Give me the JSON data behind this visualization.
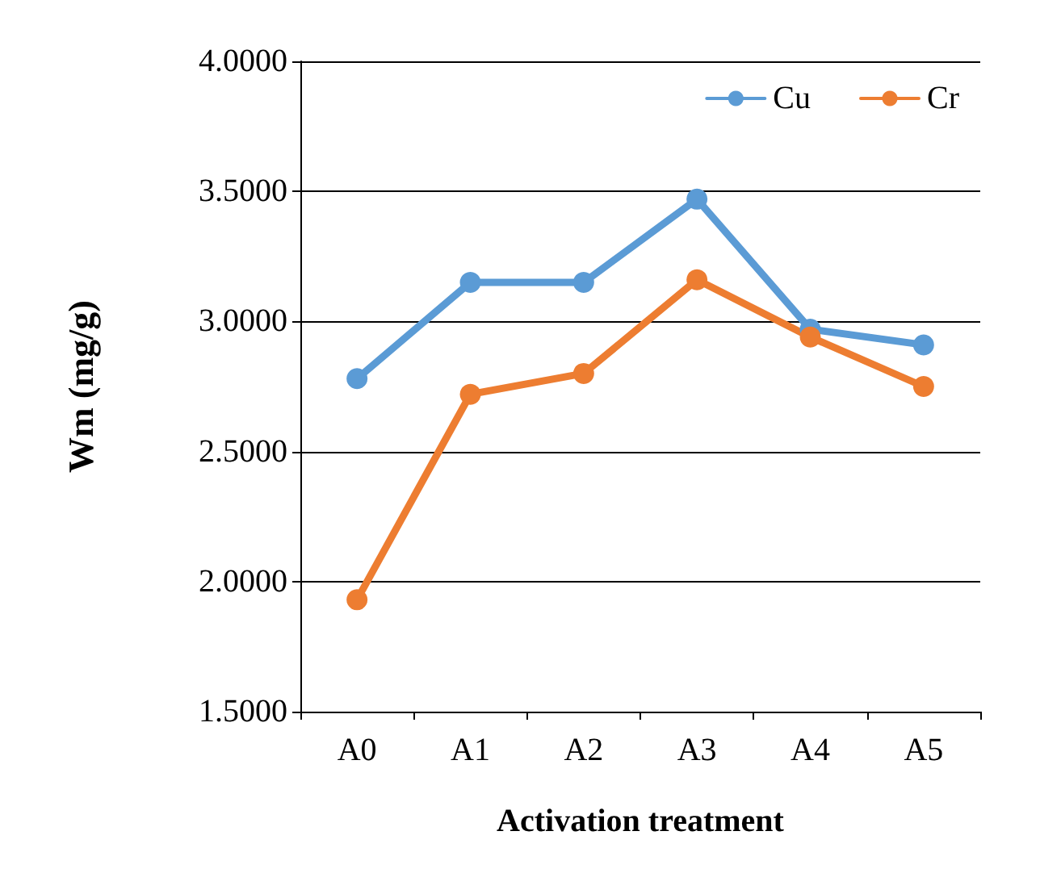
{
  "chart_data": {
    "type": "line",
    "xlabel": "Activation treatment",
    "ylabel": "Wm (mg/g)",
    "categories": [
      "A0",
      "A1",
      "A2",
      "A3",
      "A4",
      "A5"
    ],
    "series": [
      {
        "name": "Cu",
        "color": "#5b9bd5",
        "values": [
          2.78,
          3.15,
          3.15,
          3.47,
          2.97,
          2.91
        ]
      },
      {
        "name": "Cr",
        "color": "#ed7d31",
        "values": [
          1.93,
          2.72,
          2.8,
          3.16,
          2.94,
          2.75
        ]
      }
    ],
    "ylim": [
      1.5,
      4.0
    ],
    "yticks": [
      {
        "value": 1.5,
        "label": "1.5000"
      },
      {
        "value": 2.0,
        "label": "2.0000"
      },
      {
        "value": 2.5,
        "label": "2.5000"
      },
      {
        "value": 3.0,
        "label": "3.0000"
      },
      {
        "value": 3.5,
        "label": "3.5000"
      },
      {
        "value": 4.0,
        "label": "4.0000"
      }
    ],
    "grid": "y",
    "legend": "top right",
    "marker": "circle",
    "line_style": "solid"
  }
}
